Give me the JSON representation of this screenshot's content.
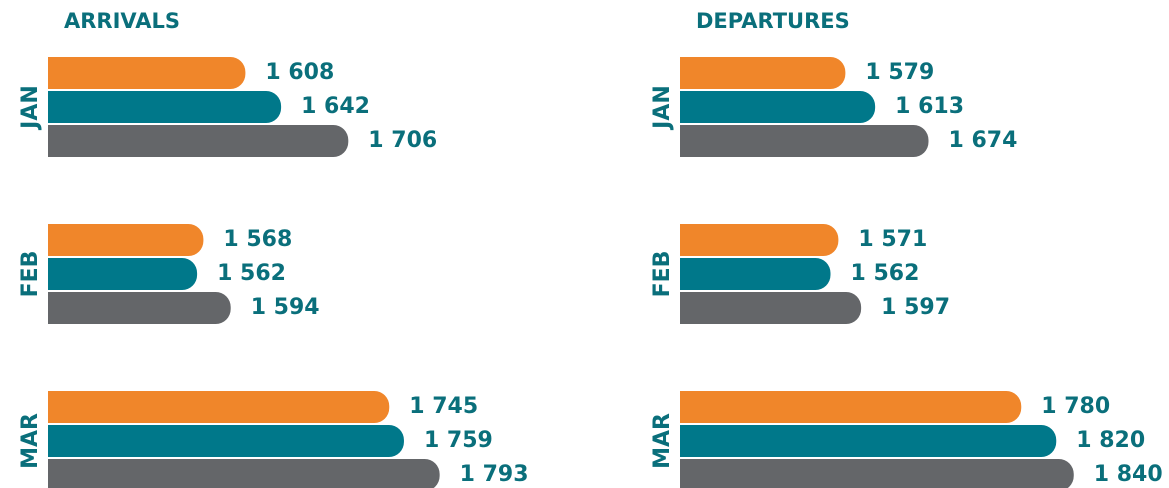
{
  "chart_data": [
    {
      "type": "bar",
      "orientation": "horizontal",
      "title": "ARRIVALS",
      "categories": [
        "JAN",
        "FEB",
        "MAR"
      ],
      "xlim": [
        1420,
        1820
      ],
      "series": [
        {
          "color": "#f0862a",
          "values": [
            1608,
            1568,
            1745
          ],
          "value_labels": [
            "1 608",
            "1 568",
            "1 745"
          ]
        },
        {
          "color": "#00788a",
          "values": [
            1642,
            1562,
            1759
          ],
          "value_labels": [
            "1 642",
            "1 562",
            "1 759"
          ]
        },
        {
          "color": "#646669",
          "values": [
            1706,
            1594,
            1793
          ],
          "value_labels": [
            "1 706",
            "1 594",
            "1 793"
          ]
        }
      ]
    },
    {
      "type": "bar",
      "orientation": "horizontal",
      "title": "DEPARTURES",
      "categories": [
        "JAN",
        "FEB",
        "MAR"
      ],
      "xlim": [
        1390,
        1870
      ],
      "series": [
        {
          "color": "#f0862a",
          "values": [
            1579,
            1571,
            1780
          ],
          "value_labels": [
            "1 579",
            "1 571",
            "1 780"
          ]
        },
        {
          "color": "#00788a",
          "values": [
            1613,
            1562,
            1820
          ],
          "value_labels": [
            "1 613",
            "1 562",
            "1 820"
          ]
        },
        {
          "color": "#646669",
          "values": [
            1674,
            1597,
            1840
          ],
          "value_labels": [
            "1 674",
            "1 597",
            "1 840"
          ]
        }
      ]
    }
  ]
}
